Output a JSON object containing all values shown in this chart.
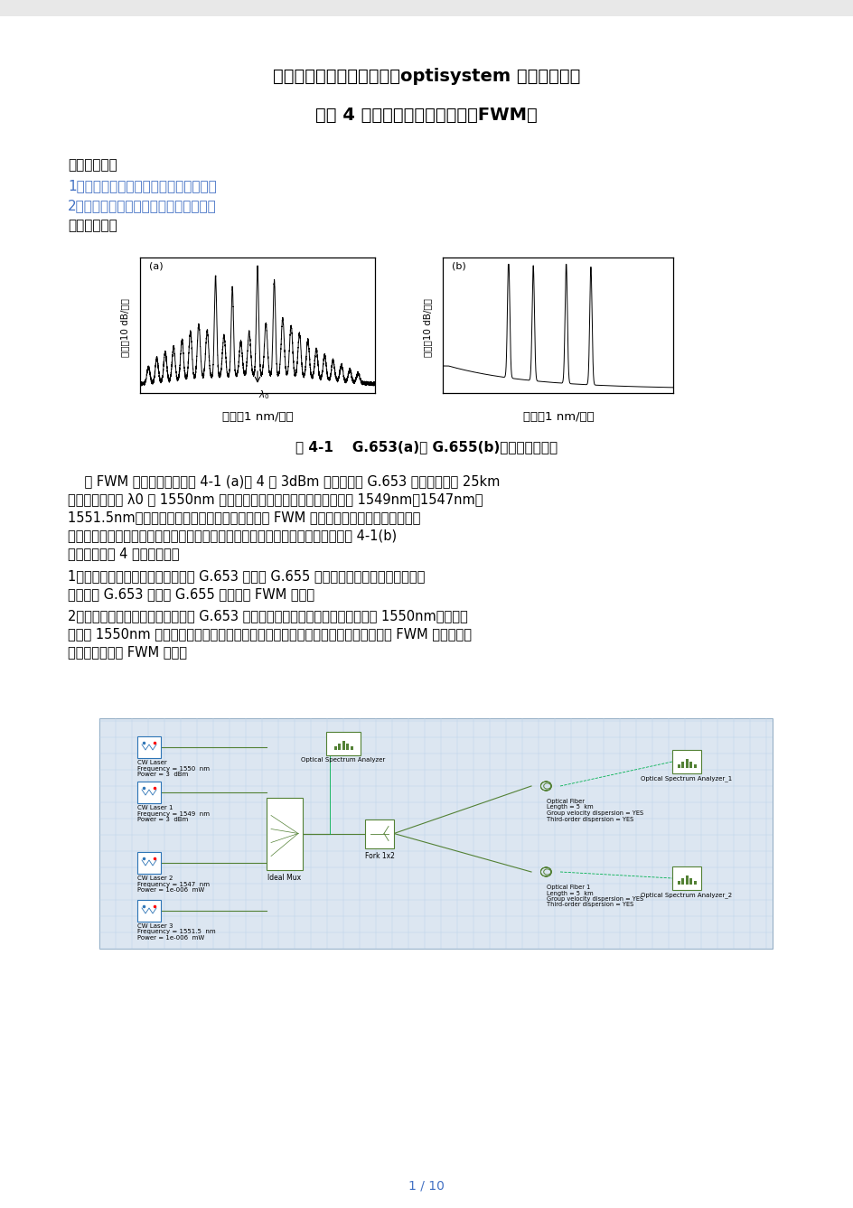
{
  "title1": "东莞理工学院《光纤通信》optisystem 软件仿真实验",
  "title2": "实验 4 光纤中的四波混频效应（FWM）",
  "section1_title": "一、实验目的",
  "item1": "1、了解影响四波混频效应的产生的因素",
  "item2": "2、了解抑制或增强四波混频效应的方法",
  "section2_title": "二、实验要求",
  "ylabel_a": "强度（10 dB/格）",
  "xlabel_a": "波长（1 nm/格）",
  "plot_a_label": "(a)",
  "ylabel_b": "强度（10 dB/格）",
  "xlabel_b": "波长（1 nm/格）",
  "plot_b_label": "(b)",
  "fig_caption_prefix": "图 4-1    ",
  "fig_caption_bold": "G.653(a)及 G.655(b)光纤的传输光谱",
  "para1_lines": [
    "    某 FWM 的实验结果：如图 4-1 (a)为 4 个 3dBm 的光信号在 G.653 光纤中传输了 25km",
    "后的光谱，其中 λ0 为 1550nm 波长，另外三个信号的中心波长分别为 1549nm、1547nm、",
    "1551.5nm。由图可见，经过传输后的信号，由于 FWM 产生了数十个串扰信号，有的叠",
    "加在原来信号上，有点落在其他位置上，干扰了原信号及其他位置信号的传输。图 4-1(b)",
    "为初始输入的 4 个光波信号。"
  ],
  "para2_line1a": "1、请根据上述实验数据，分别采用 G.653 光纤和 G.655 光纤作为传输光纤，对比光信号",
  "para2_line1b": "分别经过 G.653 光纤和 G.655 光纤后的 FWM 效应。",
  "para2_line2a": "2、假设有两个输入光波信号输入到 G.653 光纤，其中一个输入信号的波长固定在 1550nm，另一个",
  "para2_line2b": "波长在 1550nm 附近（可调）。改变输入光功率，两个波长的间隔，光纤长度，观察 FWM 效应，总结",
  "para2_line2c": "哪些因素将影响 FWM 效应。",
  "page_label": "1 / 10",
  "bg_color": "#ffffff",
  "color_black": "#000000",
  "color_blue_link": "#4472c4",
  "color_dark_blue": "#1f3864",
  "color_green": "#375623",
  "diagram_bg": "#dce6f1",
  "diagram_grid": "#b8d0e8",
  "component_border": "#538135",
  "laser_border": "#2e75b6",
  "page_bg": "#f2f2f2"
}
